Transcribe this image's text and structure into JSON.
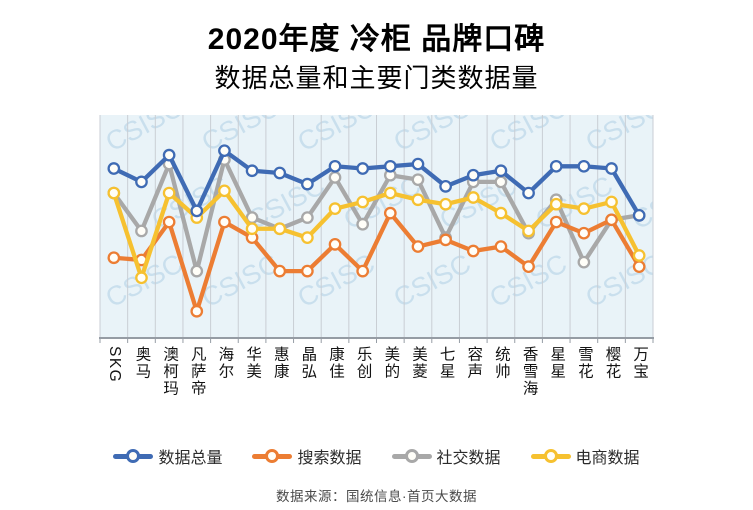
{
  "chart_data": {
    "type": "line",
    "title": "2020年度 冷柜 品牌口碑",
    "subtitle": "数据总量和主要门类数据量",
    "categories": [
      "SKG",
      "奥马",
      "澳柯玛",
      "凡萨帝",
      "海尔",
      "华美",
      "惠康",
      "晶弘",
      "康佳",
      "乐创",
      "美的",
      "美菱",
      "七星",
      "容声",
      "统帅",
      "香雪海",
      "星星",
      "雪花",
      "樱花",
      "万宝"
    ],
    "series": [
      {
        "id": "total-data",
        "name": "数据总量",
        "color": "#3f6bb4",
        "values": [
          76,
          70,
          82,
          57,
          84,
          75,
          74,
          69,
          77,
          76,
          77,
          78,
          68,
          73,
          75,
          65,
          77,
          77,
          76,
          55
        ]
      },
      {
        "id": "search-data",
        "name": "搜索数据",
        "color": "#ec7d33",
        "values": [
          36,
          35,
          52,
          12,
          52,
          45,
          30,
          30,
          42,
          30,
          56,
          41,
          44,
          39,
          41,
          32,
          52,
          47,
          53,
          32
        ]
      },
      {
        "id": "social-data",
        "name": "社交数据",
        "color": "#a8a8a8",
        "values": [
          65,
          48,
          78,
          30,
          80,
          54,
          49,
          54,
          72,
          51,
          73,
          71,
          45,
          70,
          70,
          47,
          62,
          34,
          53,
          55
        ]
      },
      {
        "id": "ecommerce-data",
        "name": "电商数据",
        "color": "#f6c130",
        "values": [
          65,
          27,
          65,
          54,
          66,
          49,
          49,
          45,
          58,
          61,
          65,
          62,
          60,
          63,
          56,
          48,
          60,
          58,
          61,
          37
        ]
      }
    ],
    "ylim": [
      0,
      100
    ],
    "y_axis_labels_visible": false,
    "grid": "vertical",
    "legend_position": "bottom",
    "plot_bg": "#e9f3f8",
    "watermark": "CSISC"
  },
  "footer": {
    "source": "数据来源：国统信息·首页大数据"
  }
}
